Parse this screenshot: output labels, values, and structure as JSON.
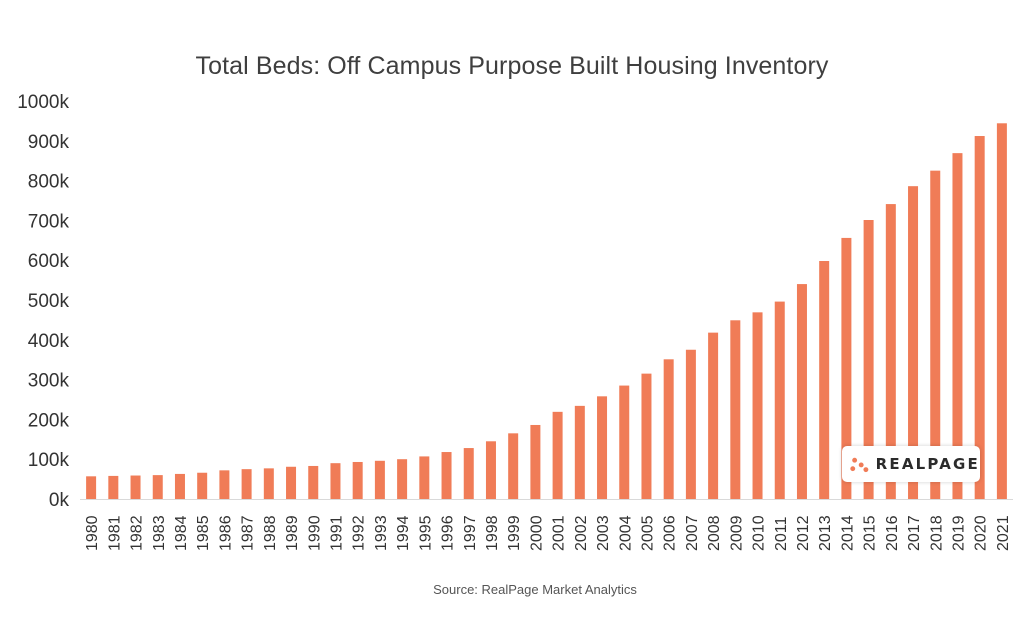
{
  "page": {
    "title": "Total Beds: Off Campus Purpose Built Housing Inventory",
    "source": "Source: RealPage Market Analytics",
    "logo_text": "REALPAGE"
  },
  "colors": {
    "bar": "#f07c57",
    "logo_dots": "#f07c57",
    "axis_text": "#333333",
    "title_text": "#3f3f3f"
  },
  "chart_data": {
    "type": "bar",
    "title": "Total Beds: Off Campus Purpose Built Housing Inventory",
    "xlabel": "",
    "ylabel": "",
    "ylim": [
      0,
      1000000
    ],
    "yticks": [
      0,
      100000,
      200000,
      300000,
      400000,
      500000,
      600000,
      700000,
      800000,
      900000,
      1000000
    ],
    "ytick_labels": [
      "0k",
      "100k",
      "200k",
      "300k",
      "400k",
      "500k",
      "600k",
      "700k",
      "800k",
      "900k",
      "1000k"
    ],
    "grid": false,
    "legend": "none",
    "categories": [
      "1980",
      "1981",
      "1982",
      "1983",
      "1984",
      "1985",
      "1986",
      "1987",
      "1988",
      "1989",
      "1990",
      "1991",
      "1992",
      "1993",
      "1994",
      "1995",
      "1996",
      "1997",
      "1998",
      "1999",
      "2000",
      "2001",
      "2002",
      "2003",
      "2004",
      "2005",
      "2006",
      "2007",
      "2008",
      "2009",
      "2010",
      "2011",
      "2012",
      "2013",
      "2014",
      "2015",
      "2016",
      "2017",
      "2018",
      "2019",
      "2020",
      "2021"
    ],
    "values": [
      57000,
      58000,
      59000,
      60000,
      63000,
      66000,
      72000,
      75000,
      77000,
      81000,
      83000,
      90000,
      93000,
      96000,
      100000,
      107000,
      118000,
      128000,
      145000,
      165000,
      186000,
      219000,
      234000,
      258000,
      285000,
      315000,
      351000,
      375000,
      418000,
      449000,
      469000,
      496000,
      540000,
      598000,
      656000,
      701000,
      741000,
      786000,
      825000,
      869000,
      912000,
      944000
    ]
  }
}
